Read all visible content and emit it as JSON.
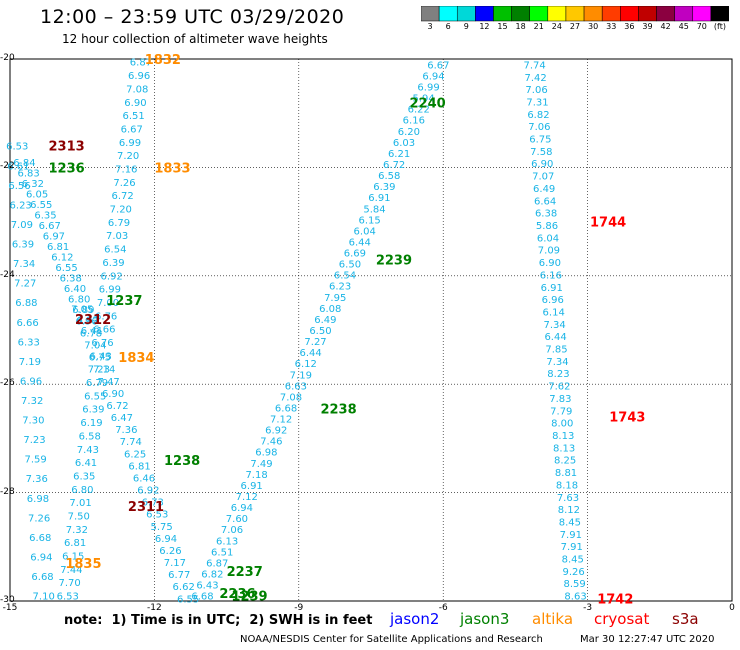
{
  "title": "12:00 – 23:59 UTC 03/29/2020",
  "subtitle": "12 hour collection of altimeter wave heights",
  "colors": {
    "jason2": "#0000ff",
    "jason3": "#008000",
    "altika": "#ff8c00",
    "cryosat": "#ff0000",
    "s3a": "#8b0000",
    "wave": "#19b4e6"
  },
  "colorbar": {
    "labels": [
      "3",
      "6",
      "9",
      "12",
      "15",
      "18",
      "21",
      "24",
      "27",
      "30",
      "33",
      "36",
      "39",
      "42",
      "45",
      "70",
      "(ft)"
    ],
    "colors": [
      "#808080",
      "#00ffff",
      "#00d8d8",
      "#0000ff",
      "#00c000",
      "#008000",
      "#00ff00",
      "#ffff00",
      "#ffc800",
      "#ff8c00",
      "#ff3c00",
      "#ff0000",
      "#c00000",
      "#8b0040",
      "#c000c0",
      "#ff00ff",
      "#000000"
    ]
  },
  "axes": {
    "xlabels": [
      "-15",
      "-12",
      "-9",
      "-6",
      "-3",
      "0"
    ],
    "ylabels": [
      "-20",
      "-22",
      "-24",
      "-26",
      "-28",
      "-30"
    ],
    "xlim": [
      -15,
      0
    ],
    "ylim": [
      -30,
      -20
    ]
  },
  "note": "note:  1) Time is in UTC;  2) SWH is in feet",
  "legend": [
    {
      "label": "jason2",
      "color": "#0000ff"
    },
    {
      "label": "jason3",
      "color": "#008000"
    },
    {
      "label": "altika",
      "color": "#ff8c00"
    },
    {
      "label": "cryosat",
      "color": "#ff0000"
    },
    {
      "label": "s3a",
      "color": "#8b0000"
    }
  ],
  "credit": "NOAA/NESDIS Center for Satellite Applications and Research",
  "timestamp": "Mar 30 12:27:47 UTC 2020",
  "time_labels": [
    {
      "text": "1832",
      "lon": -12.2,
      "lat": -20.0,
      "color": "#ff8c00"
    },
    {
      "text": "2313",
      "lon": -14.2,
      "lat": -21.6,
      "color": "#8b0000"
    },
    {
      "text": "1236",
      "lon": -14.2,
      "lat": -22.0,
      "color": "#008000"
    },
    {
      "text": "1833",
      "lon": -12.0,
      "lat": -22.0,
      "color": "#ff8c00"
    },
    {
      "text": "2240",
      "lon": -6.7,
      "lat": -20.8,
      "color": "#008000"
    },
    {
      "text": "1744",
      "lon": -2.95,
      "lat": -23.0,
      "color": "#ff0000"
    },
    {
      "text": "2239",
      "lon": -7.4,
      "lat": -23.7,
      "color": "#008000"
    },
    {
      "text": "1237",
      "lon": -13.0,
      "lat": -24.45,
      "color": "#008000"
    },
    {
      "text": "2312",
      "lon": -13.65,
      "lat": -24.8,
      "color": "#8b0000"
    },
    {
      "text": "1834",
      "lon": -12.75,
      "lat": -25.5,
      "color": "#ff8c00"
    },
    {
      "text": "2238",
      "lon": -8.55,
      "lat": -26.45,
      "color": "#008000"
    },
    {
      "text": "1743",
      "lon": -2.55,
      "lat": -26.6,
      "color": "#ff0000"
    },
    {
      "text": "1238",
      "lon": -11.8,
      "lat": -27.4,
      "color": "#008000"
    },
    {
      "text": "2311",
      "lon": -12.55,
      "lat": -28.25,
      "color": "#8b0000"
    },
    {
      "text": "1835",
      "lon": -13.85,
      "lat": -29.3,
      "color": "#ff8c00"
    },
    {
      "text": "2237",
      "lon": -10.5,
      "lat": -29.45,
      "color": "#008000"
    },
    {
      "text": "2236",
      "lon": -10.65,
      "lat": -29.85,
      "color": "#008000"
    },
    {
      "text": "1239",
      "lon": -10.4,
      "lat": -29.9,
      "color": "#008000"
    },
    {
      "text": "1742",
      "lon": -2.8,
      "lat": -29.95,
      "color": "#ff0000"
    }
  ],
  "tracks": [
    {
      "name": "altika-1832",
      "lon_start": -12.28,
      "lat_start": -20.05,
      "lon_end": -13.8,
      "lat_end": -29.9,
      "values": [
        "6.87",
        "6.96",
        "7.08",
        "6.90",
        "6.51",
        "6.67",
        "6.99",
        "7.20",
        "7.16",
        "7.26",
        "6.72",
        "7.20",
        "6.79",
        "7.03",
        "6.54",
        "6.39",
        "6.92",
        "6.99",
        "7.00",
        "6.76",
        "6.66",
        "6.76",
        "6.43",
        "7.23",
        "6.79",
        "6.55",
        "6.39",
        "6.19",
        "6.58",
        "7.43",
        "6.41",
        "6.35",
        "6.80",
        "7.01",
        "7.50",
        "7.32",
        "6.81",
        "6.15",
        "7.44",
        "7.70",
        "6.53"
      ]
    },
    {
      "name": "jason3-1236",
      "lon_start": -14.7,
      "lat_start": -21.9,
      "lon_end": -13.3,
      "lat_end": -25.0,
      "values": [
        "6.84",
        "6.83",
        "6.32",
        "6.05",
        "6.55",
        "6.35",
        "6.67",
        "6.97",
        "6.81",
        "6.12",
        "6.55",
        "6.38",
        "6.40",
        "6.80",
        "6.89",
        "6.92",
        "6.41"
      ]
    },
    {
      "name": "s3a-2313",
      "lon_start": -14.85,
      "lat_start": -21.6,
      "lon_end": -14.3,
      "lat_end": -29.9,
      "values": [
        "6.53",
        "6.61",
        "6.56",
        "6.23",
        "7.09",
        "6.39",
        "7.34",
        "7.27",
        "6.88",
        "6.66",
        "6.33",
        "7.19",
        "6.96",
        "7.32",
        "7.30",
        "7.23",
        "7.59",
        "7.36",
        "6.98",
        "7.26",
        "6.68",
        "6.94",
        "6.68",
        "7.10"
      ]
    },
    {
      "name": "jason3-1237",
      "lon_start": -13.5,
      "lat_start": -24.6,
      "lon_end": -11.3,
      "lat_end": -29.95,
      "values": [
        "7.05",
        "6.96",
        "6.78",
        "7.04",
        "6.75",
        "7.14",
        "7.47",
        "6.90",
        "6.72",
        "6.47",
        "7.36",
        "7.74",
        "6.25",
        "6.81",
        "6.46",
        "6.92",
        "6.73",
        "6.53",
        "5.75",
        "6.94",
        "6.26",
        "7.17",
        "6.77",
        "6.62",
        "6.55"
      ]
    },
    {
      "name": "jason3-2240",
      "lon_start": -6.1,
      "lat_start": -20.1,
      "lon_end": -11.0,
      "lat_end": -29.9,
      "values": [
        "6.67",
        "6.94",
        "6.99",
        "5.94",
        "6.22",
        "6.16",
        "6.20",
        "6.03",
        "6.21",
        "6.72",
        "6.58",
        "6.39",
        "6.91",
        "5.84",
        "6.15",
        "6.04",
        "6.44",
        "6.69",
        "6.50",
        "6.54",
        "6.23",
        "7.95",
        "6.08",
        "6.49",
        "6.50",
        "7.27",
        "6.44",
        "6.12",
        "7.19",
        "6.63",
        "7.08",
        "6.68",
        "7.12",
        "6.92",
        "7.46",
        "6.98",
        "7.49",
        "7.18",
        "6.91",
        "7.12",
        "6.94",
        "7.60",
        "7.06",
        "6.13",
        "6.51",
        "6.87",
        "6.82",
        "6.43",
        "6.68"
      ]
    },
    {
      "name": "cryosat-1744",
      "lon_start": -4.1,
      "lat_start": -20.1,
      "lon_end": -3.25,
      "lat_end": -29.9,
      "values": [
        "7.74",
        "7.42",
        "7.06",
        "7.31",
        "6.82",
        "7.06",
        "6.75",
        "7.58",
        "6.90",
        "7.07",
        "6.49",
        "6.64",
        "6.38",
        "5.86",
        "6.04",
        "7.09",
        "6.90",
        "6.16",
        "6.91",
        "6.96",
        "6.14",
        "7.34",
        "6.44",
        "7.85",
        "7.34",
        "8.23",
        "7.62",
        "7.83",
        "7.79",
        "8.00",
        "8.13",
        "8.13",
        "8.25",
        "8.81",
        "8.18",
        "7.63",
        "8.12",
        "8.45",
        "7.91",
        "7.91",
        "8.45",
        "9.26",
        "8.59",
        "8.63"
      ]
    }
  ]
}
